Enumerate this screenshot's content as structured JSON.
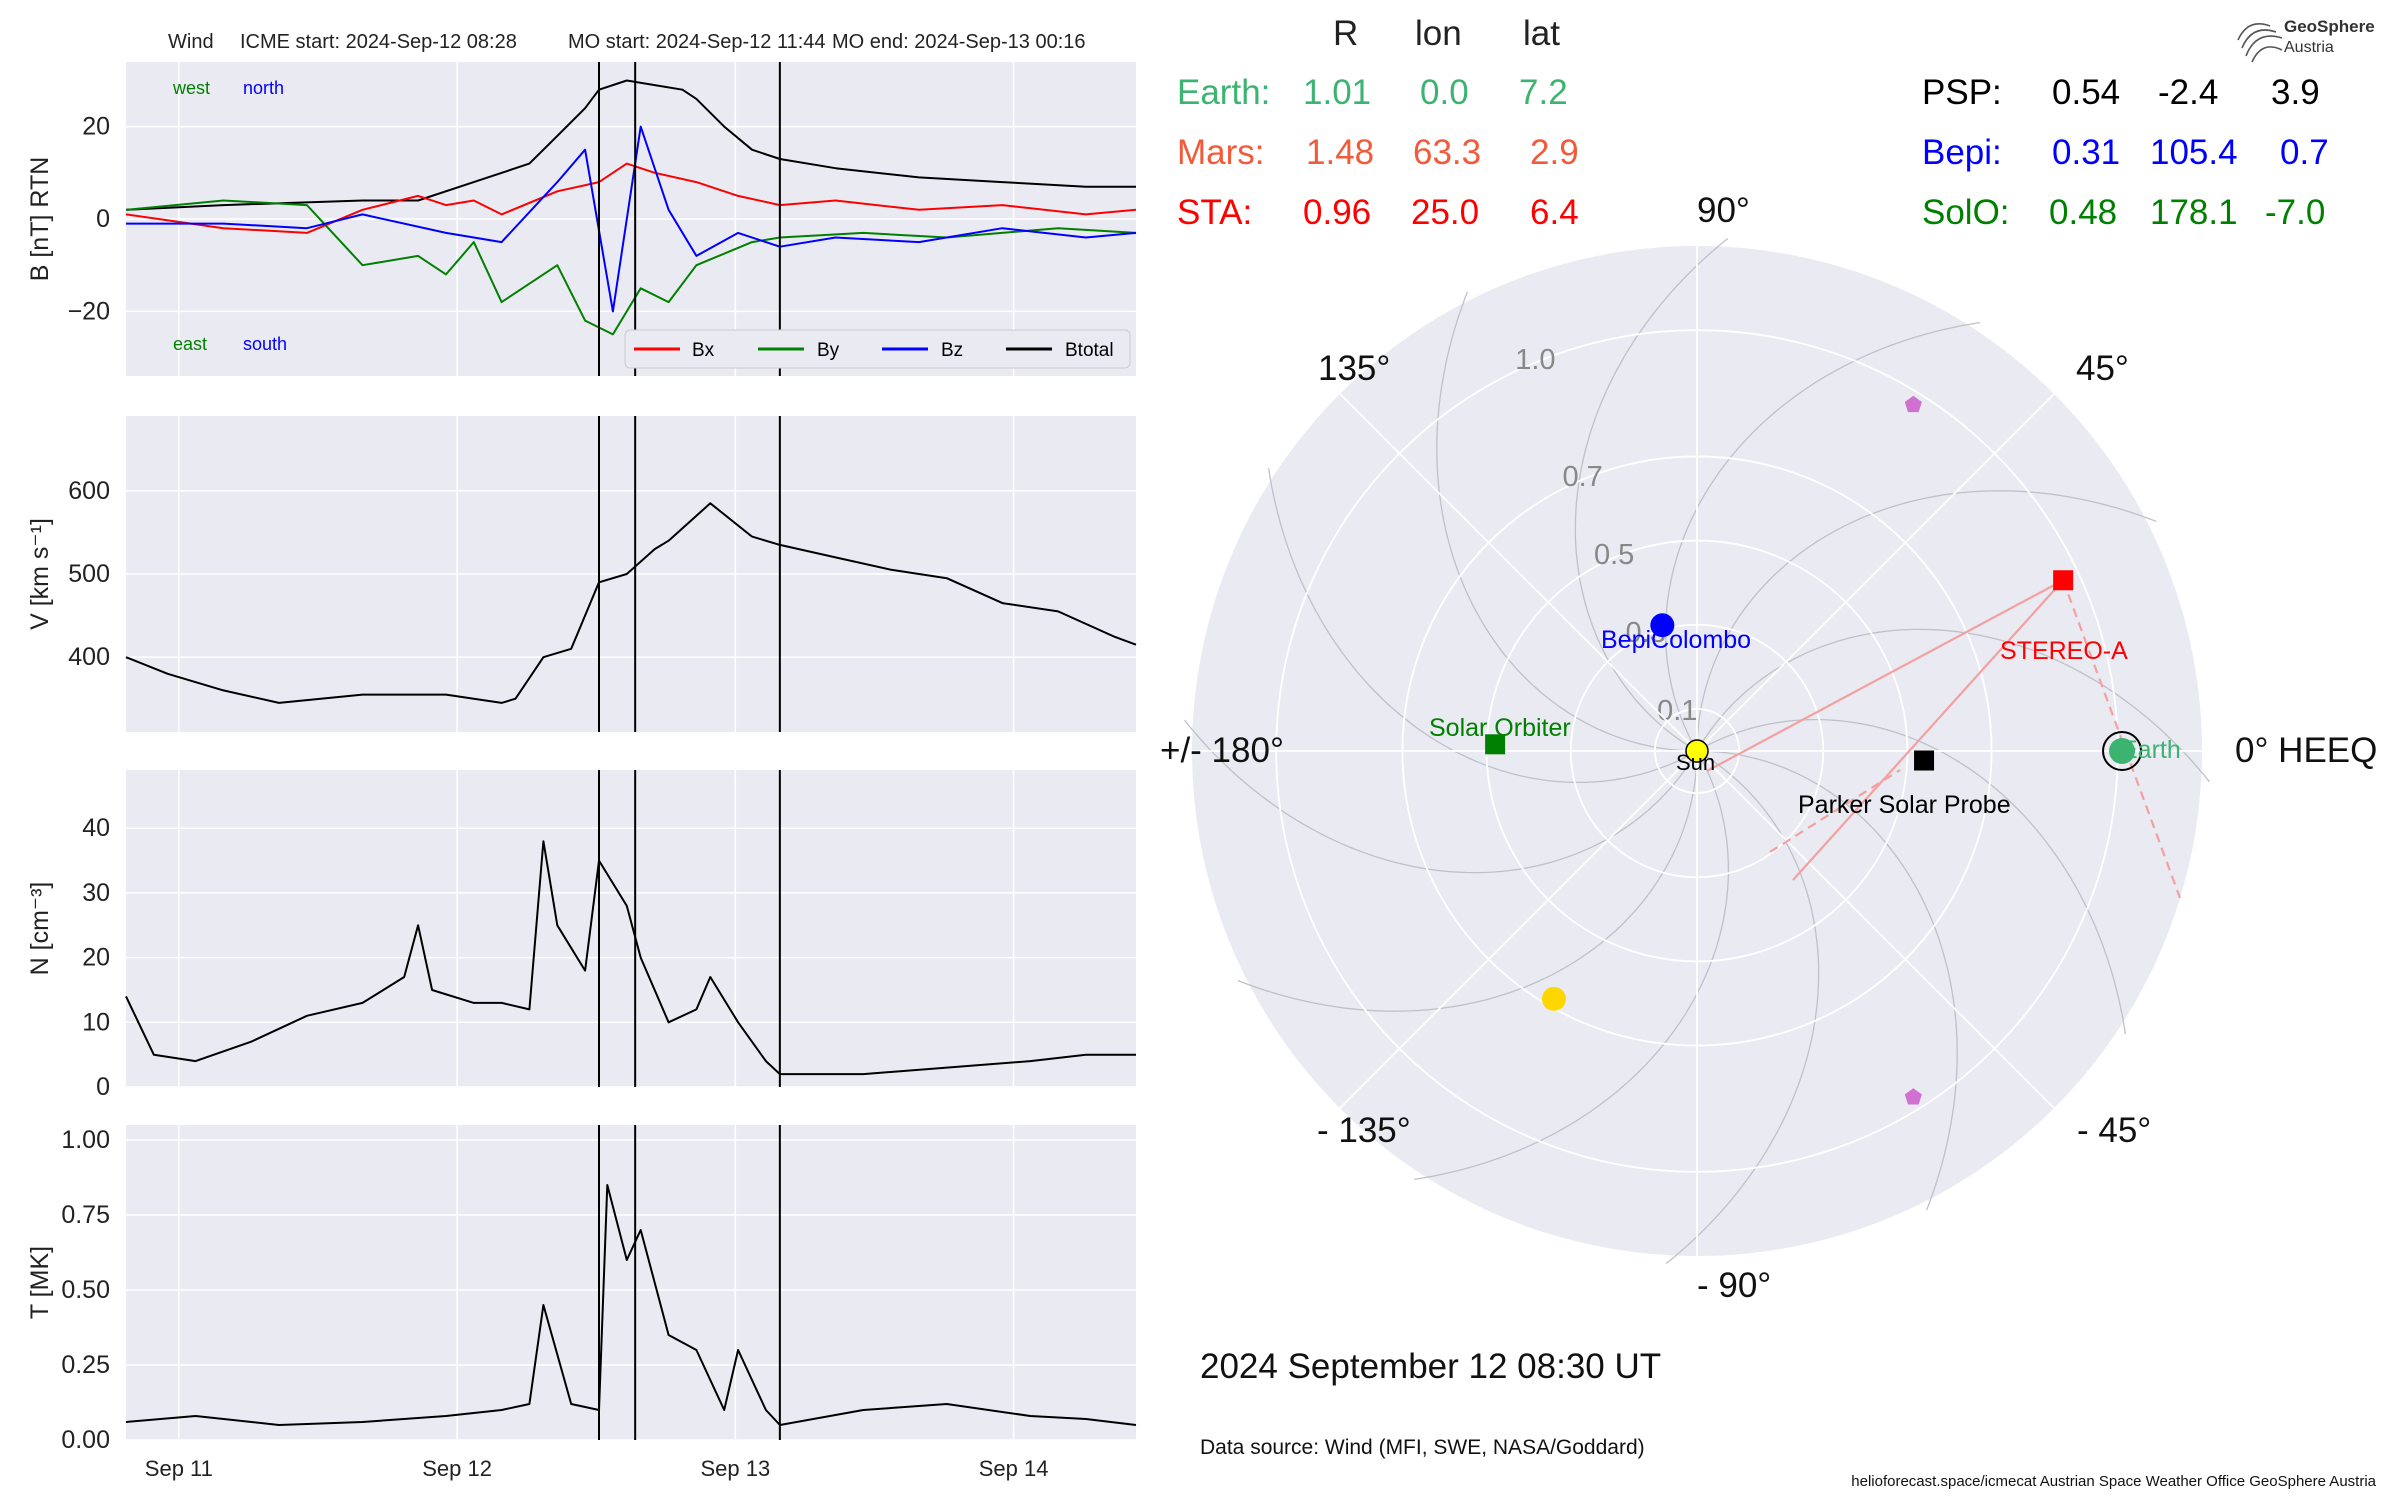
{
  "header": {
    "spacecraft": "Wind",
    "icme_start": "ICME start: 2024-Sep-12 08:28",
    "mo_start": "MO start: 2024-Sep-12 11:44",
    "mo_end": "MO end: 2024-Sep-13 00:16"
  },
  "colors": {
    "panel_bg": "#EAEAF2",
    "grid": "#ffffff",
    "bx": "#ff0000",
    "by": "#008000",
    "bz": "#0000ff",
    "btotal": "#000000",
    "earth": "#3CB371",
    "mars": "#F25A3A",
    "sta": "#ff0000",
    "psp": "#000000",
    "bepi": "#0000ff",
    "solo": "#008000"
  },
  "chart_data": [
    {
      "type": "line",
      "panel": "magnetic_field",
      "ylabel": "B [nT] RTN",
      "ylim": [
        -34,
        34
      ],
      "yticks": [
        20,
        0,
        -20
      ],
      "ytick_labels": [
        "20",
        "0",
        "−20"
      ],
      "xlim": [
        -0.35,
        3.28
      ],
      "annotations": {
        "west": "west",
        "north": "north",
        "east": "east",
        "south": "south"
      },
      "legend": {
        "placement": "bottom-right",
        "entries": [
          "Bx",
          "By",
          "Bz",
          "Btotal"
        ]
      },
      "series": [
        {
          "name": "Btotal",
          "color": "#000000",
          "x": [
            -0.35,
            0.0,
            0.5,
            0.7,
            0.9,
            1.1,
            1.2,
            1.3,
            1.35,
            1.45,
            1.55,
            1.65,
            1.7,
            1.8,
            1.9,
            2.0,
            2.2,
            2.5,
            2.8,
            3.1,
            3.28
          ],
          "y": [
            2,
            3,
            4,
            4,
            8,
            12,
            18,
            24,
            28,
            30,
            29,
            28,
            26,
            20,
            15,
            13,
            11,
            9,
            8,
            7,
            7
          ]
        },
        {
          "name": "Bx",
          "color": "#ff0000",
          "x": [
            -0.35,
            0.0,
            0.3,
            0.5,
            0.7,
            0.8,
            0.9,
            1.0,
            1.2,
            1.35,
            1.45,
            1.55,
            1.7,
            1.85,
            2.0,
            2.2,
            2.5,
            2.8,
            3.1,
            3.28
          ],
          "y": [
            1,
            -2,
            -3,
            2,
            5,
            3,
            4,
            1,
            6,
            8,
            12,
            10,
            8,
            5,
            3,
            4,
            2,
            3,
            1,
            2
          ]
        },
        {
          "name": "By",
          "color": "#008000",
          "x": [
            -0.35,
            0.0,
            0.3,
            0.5,
            0.7,
            0.8,
            0.9,
            1.0,
            1.2,
            1.3,
            1.4,
            1.5,
            1.6,
            1.7,
            1.9,
            2.0,
            2.3,
            2.6,
            3.0,
            3.28
          ],
          "y": [
            2,
            4,
            3,
            -10,
            -8,
            -12,
            -5,
            -18,
            -10,
            -22,
            -25,
            -15,
            -18,
            -10,
            -5,
            -4,
            -3,
            -4,
            -2,
            -3
          ]
        },
        {
          "name": "Bz",
          "color": "#0000ff",
          "x": [
            -0.35,
            0.0,
            0.3,
            0.5,
            0.8,
            1.0,
            1.2,
            1.3,
            1.4,
            1.5,
            1.6,
            1.7,
            1.85,
            2.0,
            2.2,
            2.5,
            2.8,
            3.1,
            3.28
          ],
          "y": [
            -1,
            -1,
            -2,
            1,
            -3,
            -5,
            8,
            15,
            -20,
            20,
            2,
            -8,
            -3,
            -6,
            -4,
            -5,
            -2,
            -4,
            -3
          ]
        }
      ]
    },
    {
      "type": "line",
      "panel": "speed",
      "ylabel": "V [km s⁻¹]",
      "ylim": [
        310,
        690
      ],
      "yticks": [
        600,
        500,
        400
      ],
      "ytick_labels": [
        "600",
        "500",
        "400"
      ],
      "xlim": [
        -0.35,
        3.28
      ],
      "series": [
        {
          "name": "V",
          "color": "#000000",
          "x": [
            -0.35,
            -0.2,
            0.0,
            0.2,
            0.5,
            0.8,
            1.0,
            1.05,
            1.15,
            1.25,
            1.35,
            1.45,
            1.55,
            1.6,
            1.75,
            1.9,
            2.0,
            2.2,
            2.4,
            2.6,
            2.8,
            3.0,
            3.1,
            3.2,
            3.28
          ],
          "y": [
            400,
            380,
            360,
            345,
            355,
            355,
            345,
            350,
            400,
            410,
            490,
            500,
            530,
            540,
            585,
            545,
            535,
            520,
            505,
            495,
            465,
            455,
            440,
            425,
            415
          ]
        }
      ]
    },
    {
      "type": "line",
      "panel": "density",
      "ylabel": "N [cm⁻³]",
      "ylim": [
        0,
        49
      ],
      "yticks": [
        40,
        30,
        20,
        10,
        0
      ],
      "ytick_labels": [
        "40",
        "30",
        "20",
        "10",
        "0"
      ],
      "xlim": [
        -0.35,
        3.28
      ],
      "series": [
        {
          "name": "N",
          "color": "#000000",
          "x": [
            -0.35,
            -0.25,
            -0.1,
            0.1,
            0.3,
            0.5,
            0.65,
            0.7,
            0.75,
            0.9,
            1.0,
            1.1,
            1.15,
            1.2,
            1.3,
            1.35,
            1.45,
            1.5,
            1.6,
            1.7,
            1.75,
            1.85,
            1.95,
            2.0,
            2.3,
            2.6,
            2.9,
            3.1,
            3.28
          ],
          "y": [
            14,
            5,
            4,
            7,
            11,
            13,
            17,
            25,
            15,
            13,
            13,
            12,
            38,
            25,
            18,
            35,
            28,
            20,
            10,
            12,
            17,
            10,
            4,
            2,
            2,
            3,
            4,
            5,
            5
          ]
        }
      ]
    },
    {
      "type": "line",
      "panel": "temperature",
      "ylabel": "T [MK]",
      "ylim": [
        0,
        1.05
      ],
      "yticks": [
        1.0,
        0.75,
        0.5,
        0.25,
        0.0
      ],
      "ytick_labels": [
        "1.00",
        "0.75",
        "0.50",
        "0.25",
        "0.00"
      ],
      "xlim": [
        -0.35,
        3.28
      ],
      "xticks": [
        -0.16,
        0.84,
        1.84,
        2.84
      ],
      "xtick_labels": [
        "Sep 11",
        "Sep 12",
        "Sep 13",
        "Sep 14"
      ],
      "series": [
        {
          "name": "T",
          "color": "#000000",
          "x": [
            -0.35,
            -0.1,
            0.2,
            0.5,
            0.8,
            1.0,
            1.1,
            1.15,
            1.25,
            1.35,
            1.38,
            1.45,
            1.5,
            1.6,
            1.7,
            1.8,
            1.85,
            1.95,
            2.0,
            2.3,
            2.6,
            2.9,
            3.1,
            3.28
          ],
          "y": [
            0.06,
            0.08,
            0.05,
            0.06,
            0.08,
            0.1,
            0.12,
            0.45,
            0.12,
            0.1,
            0.85,
            0.6,
            0.7,
            0.35,
            0.3,
            0.1,
            0.3,
            0.1,
            0.05,
            0.1,
            0.12,
            0.08,
            0.07,
            0.05
          ]
        }
      ]
    },
    {
      "type": "scatter",
      "panel": "polar_position_map",
      "coordinate_system": "HEEQ",
      "angle_labels": {
        "a0": "0° HEEQ",
        "a45": "45°",
        "a90": "90°",
        "a135": "135°",
        "a180": "+/- 180°",
        "am135": "- 135°",
        "am90": "- 90°",
        "am45": "- 45°"
      },
      "radial_ticks": [
        0.1,
        0.3,
        0.5,
        0.7,
        1.0
      ],
      "radial_tick_labels": [
        "0.1",
        "0.3",
        "0.5",
        "0.7",
        "1.0"
      ],
      "rlim": [
        0,
        1.2
      ],
      "objects": [
        {
          "name": "Sun",
          "label": "Sun",
          "r": 0.0,
          "lon": 0.0,
          "color": "#ffff00",
          "marker": "circle"
        },
        {
          "name": "Earth",
          "label": "Earth",
          "r": 1.01,
          "lon": 0.0,
          "color": "#3CB371",
          "marker": "circle"
        },
        {
          "name": "STEREO-A",
          "label": "STEREO-A",
          "r": 0.96,
          "lon": 25.0,
          "color": "#ff0000",
          "marker": "square"
        },
        {
          "name": "Parker Solar Probe",
          "label": "Parker Solar Probe",
          "r": 0.54,
          "lon": -2.4,
          "color": "#000000",
          "marker": "square"
        },
        {
          "name": "BepiColombo",
          "label": "BepiColombo",
          "r": 0.31,
          "lon": 105.4,
          "color": "#0000ff",
          "marker": "circle"
        },
        {
          "name": "Solar Orbiter",
          "label": "Solar Orbiter",
          "r": 0.48,
          "lon": 178.1,
          "color": "#008000",
          "marker": "square"
        },
        {
          "name": "Mars",
          "label": "",
          "r": 1.48,
          "lon": 63.3,
          "color": "#F25A3A",
          "marker": "circle"
        },
        {
          "name": "planet-yellow",
          "label": "",
          "r": 0.68,
          "lon": -120.0,
          "color": "#FFD700",
          "marker": "circle"
        },
        {
          "name": "pentagon-upper",
          "label": "",
          "r": 0.97,
          "lon": 58.0,
          "color": "#D070D0",
          "marker": "pentagon"
        },
        {
          "name": "pentagon-lower",
          "label": "",
          "r": 0.97,
          "lon": -58.0,
          "color": "#D070D0",
          "marker": "pentagon"
        }
      ]
    }
  ],
  "position_table": {
    "headers": [
      "R",
      "lon",
      "lat"
    ],
    "left_rows": [
      {
        "label": "Earth:",
        "r": "1.01",
        "lon": "0.0",
        "lat": "7.2",
        "color": "#3CB371"
      },
      {
        "label": "Mars:",
        "r": "1.48",
        "lon": "63.3",
        "lat": "2.9",
        "color": "#F25A3A"
      },
      {
        "label": "STA:",
        "r": "0.96",
        "lon": "25.0",
        "lat": "6.4",
        "color": "#ff0000"
      }
    ],
    "right_rows": [
      {
        "label": "PSP:",
        "r": "0.54",
        "lon": "-2.4",
        "lat": "3.9",
        "color": "#000000"
      },
      {
        "label": "Bepi:",
        "r": "0.31",
        "lon": "105.4",
        "lat": "0.7",
        "color": "#0000ff"
      },
      {
        "label": "SolO:",
        "r": "0.48",
        "lon": "178.1",
        "lat": "-7.0",
        "color": "#008000"
      }
    ]
  },
  "footer": {
    "date": "2024 September 12  08:30 UT",
    "data_source": "Data source: Wind (MFI, SWE, NASA/Goddard)",
    "credits": "helioforecast.space/icmecat   Austrian Space Weather Office   GeoSphere Austria"
  },
  "logo": {
    "line1": "GeoSphere",
    "line2": "Austria"
  }
}
